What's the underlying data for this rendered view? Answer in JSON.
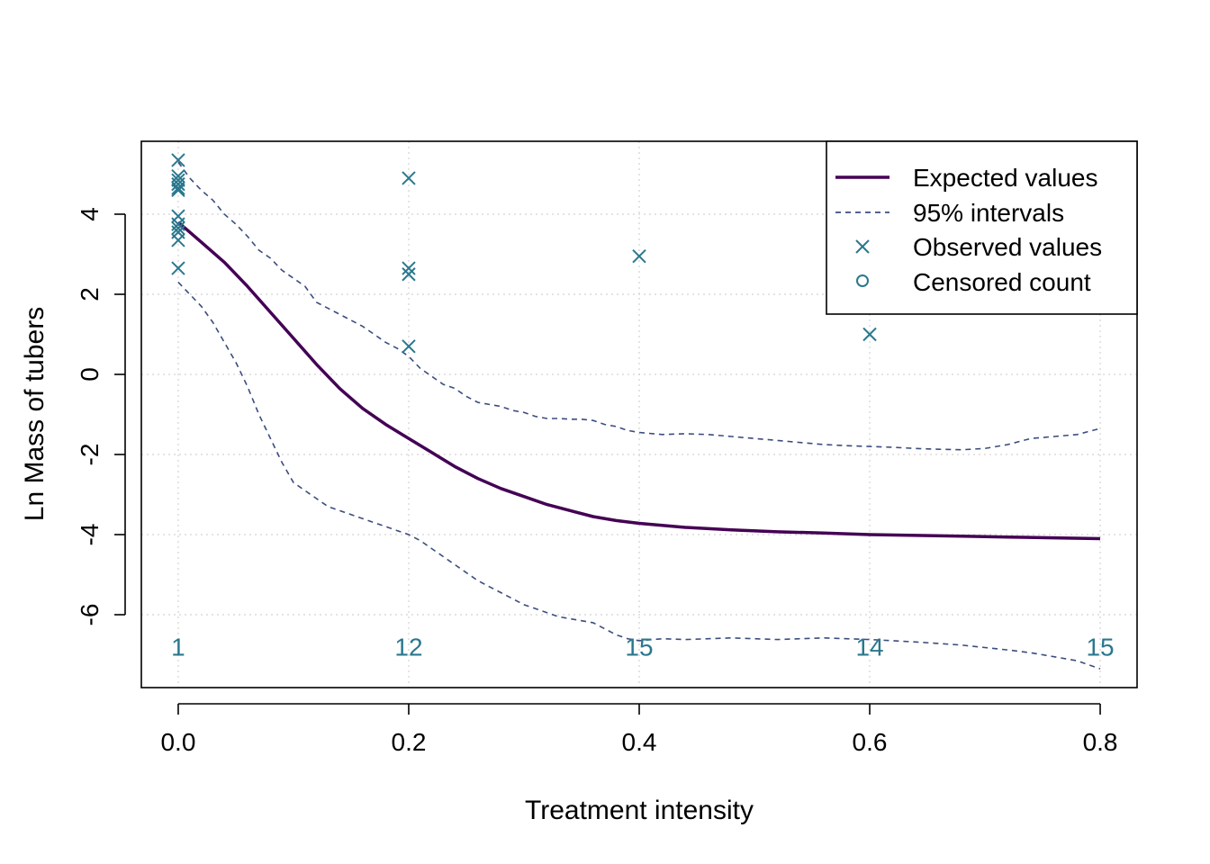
{
  "chart_data": {
    "type": "line",
    "xlabel": "Treatment intensity",
    "ylabel": "Ln Mass of tubers",
    "xlim": [
      -0.032,
      0.832
    ],
    "ylim": [
      -7.82,
      5.82
    ],
    "x_ticks": [
      0.0,
      0.2,
      0.4,
      0.6,
      0.8
    ],
    "x_tick_labels": [
      "0.0",
      "0.2",
      "0.4",
      "0.6",
      "0.8"
    ],
    "y_ticks": [
      -6,
      -4,
      -2,
      0,
      2,
      4
    ],
    "y_tick_labels": [
      "-6",
      "-4",
      "-2",
      "0",
      "2",
      "4"
    ],
    "grid": true,
    "legend": {
      "position": "top-right",
      "entries": [
        {
          "label": "Expected values",
          "style": "solid-line"
        },
        {
          "label": "95% intervals",
          "style": "dashed-line"
        },
        {
          "label": "Observed values",
          "style": "cross-marker"
        },
        {
          "label": "Censored count",
          "style": "circle-marker"
        }
      ]
    },
    "colors": {
      "expected": "#440154",
      "interval": "#3b4d7e",
      "observed": "#2a788e",
      "censored": "#2a788e",
      "grid": "#d3d3d3"
    },
    "series": [
      {
        "name": "Expected values",
        "x": [
          0.0,
          0.02,
          0.04,
          0.06,
          0.08,
          0.1,
          0.12,
          0.14,
          0.16,
          0.18,
          0.2,
          0.22,
          0.24,
          0.26,
          0.28,
          0.3,
          0.32,
          0.34,
          0.36,
          0.38,
          0.4,
          0.44,
          0.48,
          0.52,
          0.56,
          0.6,
          0.64,
          0.68,
          0.72,
          0.76,
          0.8
        ],
        "y": [
          3.8,
          3.3,
          2.8,
          2.2,
          1.55,
          0.9,
          0.25,
          -0.35,
          -0.85,
          -1.25,
          -1.6,
          -1.95,
          -2.3,
          -2.6,
          -2.85,
          -3.05,
          -3.25,
          -3.4,
          -3.55,
          -3.65,
          -3.72,
          -3.82,
          -3.88,
          -3.93,
          -3.96,
          -4.0,
          -4.02,
          -4.04,
          -4.06,
          -4.08,
          -4.1
        ]
      },
      {
        "name": "95% intervals",
        "x": [
          0.0,
          0.005,
          0.01,
          0.02,
          0.03,
          0.04,
          0.05,
          0.06,
          0.07,
          0.08,
          0.09,
          0.1,
          0.11,
          0.12,
          0.13,
          0.14,
          0.15,
          0.16,
          0.17,
          0.18,
          0.19,
          0.2,
          0.21,
          0.22,
          0.23,
          0.24,
          0.25,
          0.26,
          0.27,
          0.28,
          0.29,
          0.3,
          0.31,
          0.32,
          0.33,
          0.34,
          0.35,
          0.36,
          0.37,
          0.38,
          0.39,
          0.4,
          0.42,
          0.44,
          0.46,
          0.48,
          0.5,
          0.52,
          0.54,
          0.56,
          0.58,
          0.6,
          0.62,
          0.64,
          0.66,
          0.68,
          0.7,
          0.72,
          0.74,
          0.76,
          0.78,
          0.8
        ],
        "y": [
          5.3,
          5.1,
          4.9,
          4.6,
          4.35,
          4.0,
          3.75,
          3.45,
          3.1,
          2.9,
          2.6,
          2.4,
          2.2,
          1.8,
          1.65,
          1.5,
          1.35,
          1.2,
          1.0,
          0.8,
          0.65,
          0.45,
          0.15,
          -0.05,
          -0.25,
          -0.35,
          -0.55,
          -0.7,
          -0.75,
          -0.8,
          -0.9,
          -0.95,
          -1.05,
          -1.1,
          -1.1,
          -1.12,
          -1.12,
          -1.15,
          -1.25,
          -1.3,
          -1.4,
          -1.45,
          -1.5,
          -1.48,
          -1.5,
          -1.55,
          -1.6,
          -1.65,
          -1.7,
          -1.75,
          -1.78,
          -1.8,
          -1.82,
          -1.85,
          -1.87,
          -1.88,
          -1.85,
          -1.75,
          -1.6,
          -1.55,
          -1.5,
          -1.35
        ]
      },
      {
        "name": "95% intervals",
        "x": [
          0.0,
          0.01,
          0.02,
          0.03,
          0.04,
          0.05,
          0.06,
          0.07,
          0.08,
          0.09,
          0.1,
          0.11,
          0.12,
          0.13,
          0.14,
          0.15,
          0.16,
          0.17,
          0.18,
          0.19,
          0.2,
          0.21,
          0.22,
          0.23,
          0.24,
          0.25,
          0.26,
          0.27,
          0.28,
          0.29,
          0.3,
          0.31,
          0.32,
          0.33,
          0.34,
          0.35,
          0.36,
          0.37,
          0.38,
          0.39,
          0.4,
          0.42,
          0.44,
          0.46,
          0.48,
          0.5,
          0.52,
          0.54,
          0.56,
          0.58,
          0.6,
          0.62,
          0.64,
          0.66,
          0.68,
          0.7,
          0.72,
          0.74,
          0.76,
          0.78,
          0.8
        ],
        "y": [
          2.3,
          2.0,
          1.7,
          1.3,
          0.8,
          0.3,
          -0.3,
          -1.0,
          -1.6,
          -2.2,
          -2.7,
          -2.9,
          -3.1,
          -3.3,
          -3.4,
          -3.5,
          -3.6,
          -3.7,
          -3.8,
          -3.9,
          -4.0,
          -4.15,
          -4.35,
          -4.55,
          -4.75,
          -4.95,
          -5.15,
          -5.3,
          -5.45,
          -5.6,
          -5.75,
          -5.85,
          -5.95,
          -6.05,
          -6.1,
          -6.15,
          -6.2,
          -6.35,
          -6.5,
          -6.6,
          -6.65,
          -6.6,
          -6.62,
          -6.6,
          -6.58,
          -6.6,
          -6.62,
          -6.6,
          -6.58,
          -6.6,
          -6.62,
          -6.65,
          -6.68,
          -6.72,
          -6.76,
          -6.82,
          -6.88,
          -6.95,
          -7.05,
          -7.15,
          -7.35
        ]
      }
    ],
    "observed_values": [
      {
        "x": 0.0,
        "y": 5.35
      },
      {
        "x": 0.0,
        "y": 4.95
      },
      {
        "x": 0.0,
        "y": 4.85
      },
      {
        "x": 0.0,
        "y": 4.75
      },
      {
        "x": 0.0,
        "y": 4.65
      },
      {
        "x": 0.0,
        "y": 4.6
      },
      {
        "x": 0.0,
        "y": 3.95
      },
      {
        "x": 0.0,
        "y": 3.75
      },
      {
        "x": 0.0,
        "y": 3.65
      },
      {
        "x": 0.0,
        "y": 3.55
      },
      {
        "x": 0.0,
        "y": 3.35
      },
      {
        "x": 0.0,
        "y": 2.65
      },
      {
        "x": 0.2,
        "y": 4.9
      },
      {
        "x": 0.2,
        "y": 2.65
      },
      {
        "x": 0.2,
        "y": 2.5
      },
      {
        "x": 0.2,
        "y": 0.7
      },
      {
        "x": 0.4,
        "y": 2.95
      },
      {
        "x": 0.6,
        "y": 1.0
      }
    ],
    "censored_counts": [
      {
        "x": 0.0,
        "label": "1"
      },
      {
        "x": 0.2,
        "label": "12"
      },
      {
        "x": 0.4,
        "label": "15"
      },
      {
        "x": 0.6,
        "label": "14"
      },
      {
        "x": 0.8,
        "label": "15"
      }
    ],
    "censored_count_y": -6.8
  }
}
